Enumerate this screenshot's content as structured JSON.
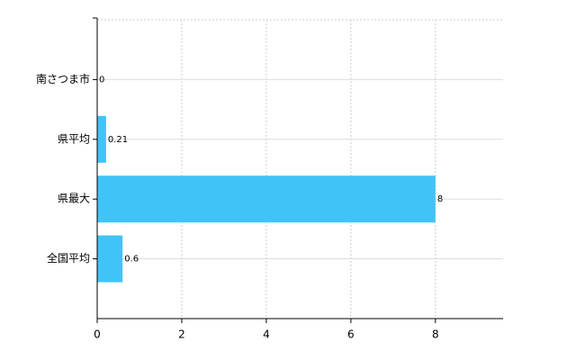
{
  "chart_data": {
    "type": "bar",
    "orientation": "horizontal",
    "categories": [
      "南さつま市",
      "県平均",
      "県最大",
      "全国平均"
    ],
    "values": [
      0,
      0.21,
      8,
      0.6
    ],
    "color": "#40c4f8",
    "xlim": [
      0,
      9.6
    ],
    "xticks": [
      0,
      2,
      4,
      6,
      8
    ],
    "grid": true
  }
}
